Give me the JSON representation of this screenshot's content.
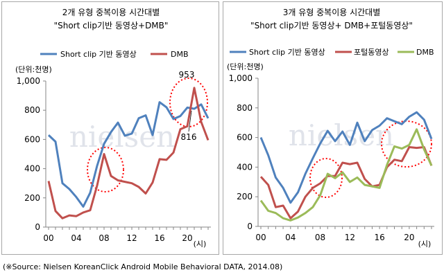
{
  "watermark": "nielsen",
  "source": "(※Source: Nielsen KoreanClick Android Mobile Behavioral DATA, 2014.08)",
  "colors": {
    "blue": "#4f81bd",
    "red": "#c0504d",
    "green": "#9bbb59",
    "circle": "#ff0000"
  },
  "chart_data": [
    {
      "type": "line",
      "title": "2개 유형 중복이용 시간대별",
      "subtitle": "\"Short clip기반 동영상+DMB\"",
      "unit_label": "(단위:천명)",
      "xunit": "(시)",
      "ylim": [
        0,
        1000
      ],
      "yticks": [
        "0",
        "200",
        "400",
        "600",
        "800",
        "1,000"
      ],
      "xticks": [
        "00",
        "04",
        "08",
        "12",
        "16",
        "20"
      ],
      "x": [
        0,
        1,
        2,
        3,
        4,
        5,
        6,
        7,
        8,
        9,
        10,
        11,
        12,
        13,
        14,
        15,
        16,
        17,
        18,
        19,
        20,
        21,
        22,
        23
      ],
      "series": [
        {
          "name": "Short clip 기반 동영상",
          "color": "#4f81bd",
          "values": [
            630,
            585,
            300,
            260,
            205,
            140,
            235,
            420,
            570,
            650,
            715,
            625,
            640,
            745,
            765,
            630,
            855,
            820,
            740,
            760,
            818,
            810,
            840,
            745
          ]
        },
        {
          "name": "DMB",
          "color": "#c0504d",
          "values": [
            315,
            110,
            60,
            80,
            75,
            100,
            115,
            285,
            500,
            350,
            320,
            310,
            300,
            275,
            230,
            305,
            465,
            460,
            510,
            670,
            690,
            953,
            720,
            595
          ]
        }
      ],
      "annotations": [
        "953",
        "816"
      ]
    },
    {
      "type": "line",
      "title": "3개 유형 중복이용 시간대별",
      "subtitle": "\"Short clip기반 동영상+ DMB+포털동영상\"",
      "unit_label": "(단위:천명)",
      "xunit": "(시)",
      "ylim": [
        0,
        1000
      ],
      "yticks": [
        "0",
        "200",
        "400",
        "600",
        "800",
        "1,000"
      ],
      "xticks": [
        "00",
        "04",
        "08",
        "12",
        "16",
        "20"
      ],
      "x": [
        0,
        1,
        2,
        3,
        4,
        5,
        6,
        7,
        8,
        9,
        10,
        11,
        12,
        13,
        14,
        15,
        16,
        17,
        18,
        19,
        20,
        21,
        22,
        23
      ],
      "series": [
        {
          "name": "Short clip 기반 동영상",
          "color": "#4f81bd",
          "values": [
            600,
            480,
            330,
            260,
            160,
            230,
            355,
            460,
            560,
            645,
            575,
            640,
            550,
            700,
            575,
            650,
            680,
            730,
            710,
            690,
            740,
            770,
            720,
            590
          ]
        },
        {
          "name": "포털동영상",
          "color": "#c0504d",
          "values": [
            335,
            280,
            130,
            140,
            55,
            100,
            200,
            260,
            290,
            340,
            340,
            430,
            420,
            430,
            320,
            270,
            280,
            400,
            450,
            440,
            535,
            530,
            535,
            410
          ]
        },
        {
          "name": "DMB",
          "color": "#9bbb59",
          "values": [
            175,
            105,
            90,
            55,
            40,
            60,
            90,
            130,
            210,
            355,
            325,
            365,
            300,
            330,
            280,
            270,
            260,
            415,
            540,
            525,
            550,
            655,
            520,
            410
          ]
        }
      ]
    }
  ]
}
